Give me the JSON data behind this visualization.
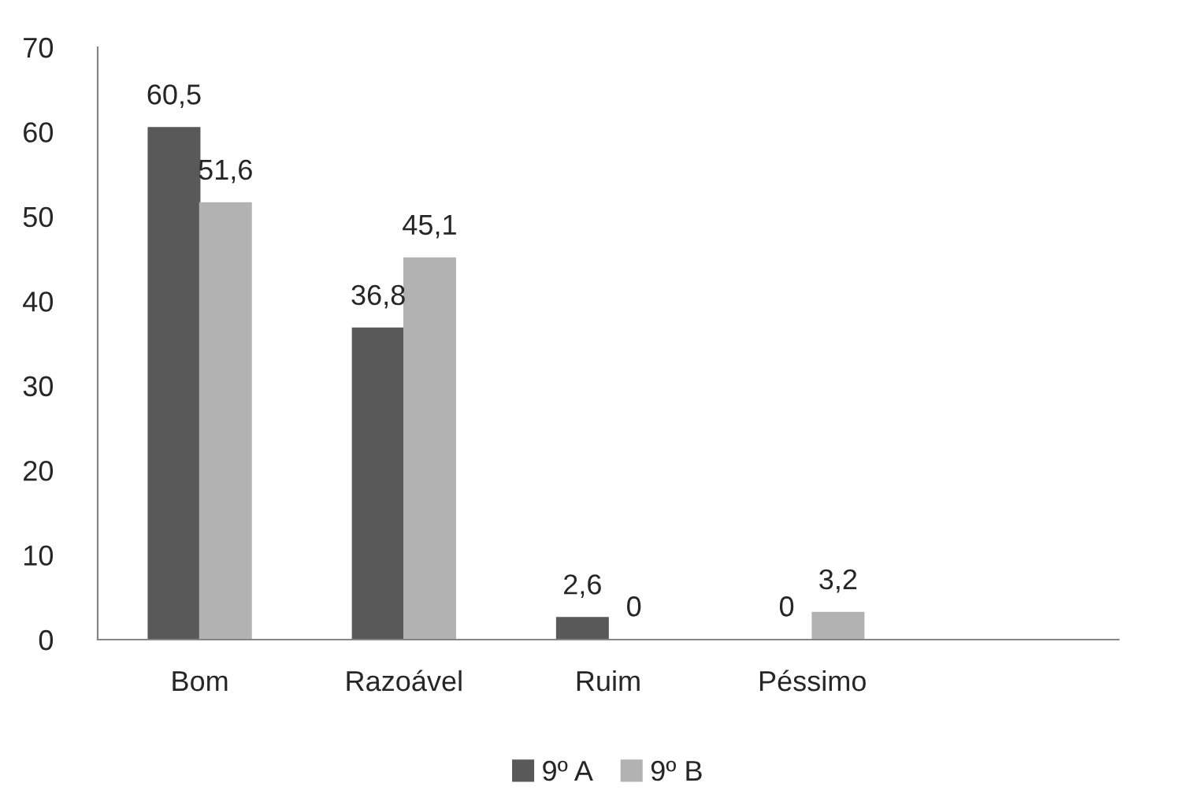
{
  "chart_data": {
    "type": "bar",
    "categories": [
      "Bom",
      "Razoável",
      "Ruim",
      "Péssimo",
      null
    ],
    "series": [
      {
        "name": "9º A",
        "color": "#595959",
        "values": [
          60.5,
          36.8,
          2.6,
          0,
          null
        ],
        "value_labels": [
          "60,5",
          "36,8",
          "2,6",
          "0",
          null
        ]
      },
      {
        "name": "9º B",
        "color": "#b2b2b2",
        "values": [
          51.6,
          45.1,
          0,
          3.2,
          null
        ],
        "value_labels": [
          "51,6",
          "45,1",
          "0",
          "3,2",
          null
        ]
      }
    ],
    "ylim": [
      0,
      70
    ],
    "yticks": [
      0,
      10,
      20,
      30,
      40,
      50,
      60,
      70
    ],
    "grid": false,
    "legend": "bottom"
  }
}
